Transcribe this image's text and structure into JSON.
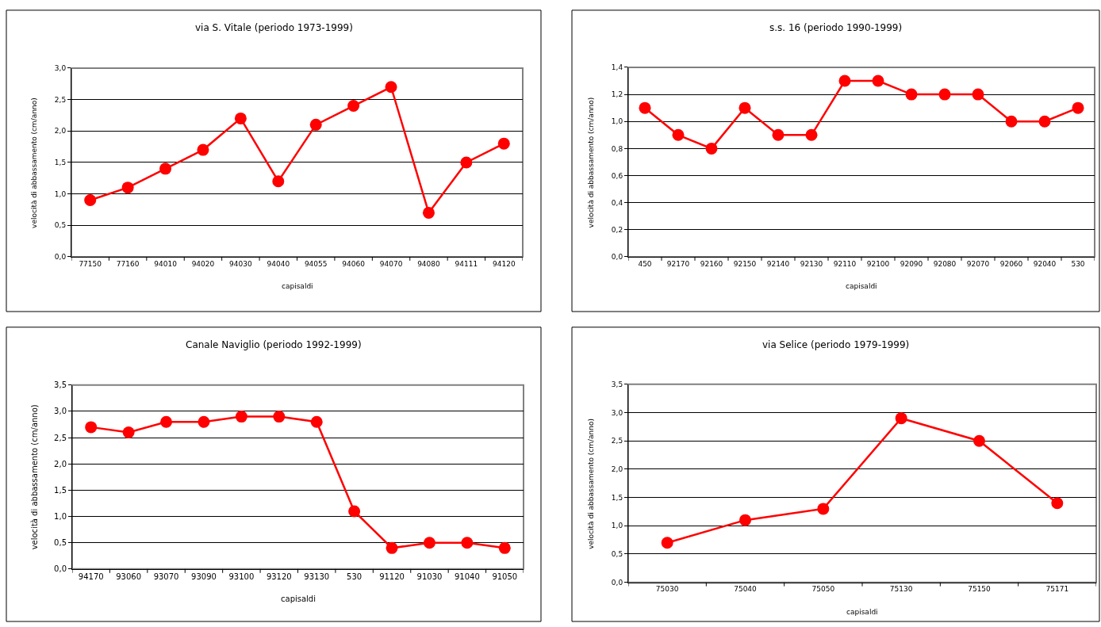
{
  "chart_data": [
    {
      "type": "line",
      "title": "via S. Vitale (periodo 1973-1999)",
      "xlabel": "capisaldi",
      "ylabel": "velocità di abbassamento (cm/anno)",
      "categories": [
        "77150",
        "77160",
        "94010",
        "94020",
        "94030",
        "94040",
        "94055",
        "94060",
        "94070",
        "94080",
        "94111",
        "94120"
      ],
      "series": [
        {
          "color": "#ff0000",
          "values": [
            0.9,
            1.1,
            1.4,
            1.7,
            2.2,
            1.2,
            2.1,
            2.4,
            2.7,
            0.7,
            1.5,
            1.8
          ]
        }
      ],
      "ylim": [
        0,
        3
      ],
      "yticks": [
        {
          "value": 0,
          "label": "0,0"
        },
        {
          "value": 0.5,
          "label": "0,5"
        },
        {
          "value": 1,
          "label": "1,0"
        },
        {
          "value": 1.5,
          "label": "1,5"
        },
        {
          "value": 2,
          "label": "2,0"
        },
        {
          "value": 2.5,
          "label": "2,5"
        },
        {
          "value": 3,
          "label": "3,0"
        }
      ],
      "grid": "y",
      "marker": "circle",
      "line_style": "solid"
    },
    {
      "type": "line",
      "title": "s.s. 16 (periodo 1990-1999)",
      "xlabel": "capisaldi",
      "ylabel": "velocità di abbassamento (cm/anno)",
      "categories": [
        "450",
        "92170",
        "92160",
        "92150",
        "92140",
        "92130",
        "92110",
        "92100",
        "92090",
        "92080",
        "92070",
        "92060",
        "92040",
        "530"
      ],
      "series": [
        {
          "color": "#ff0000",
          "values": [
            1.1,
            0.9,
            0.8,
            1.1,
            0.9,
            0.9,
            1.3,
            1.3,
            1.2,
            1.2,
            1.2,
            1.0,
            1.0,
            1.1
          ]
        }
      ],
      "ylim": [
        0,
        1.4
      ],
      "yticks": [
        {
          "value": 0,
          "label": "0,0"
        },
        {
          "value": 0.2,
          "label": "0,2"
        },
        {
          "value": 0.4,
          "label": "0,4"
        },
        {
          "value": 0.6,
          "label": "0,6"
        },
        {
          "value": 0.8,
          "label": "0,8"
        },
        {
          "value": 1,
          "label": "1,0"
        },
        {
          "value": 1.2,
          "label": "1,2"
        },
        {
          "value": 1.4,
          "label": "1,4"
        }
      ],
      "grid": "y",
      "marker": "circle",
      "line_style": "solid"
    },
    {
      "type": "line",
      "title": "Canale Naviglio (periodo 1992-1999)",
      "xlabel": "capisaldi",
      "ylabel": "velocità di abbassamento (cm/anno)",
      "categories": [
        "94170",
        "93060",
        "93070",
        "93090",
        "93100",
        "93120",
        "93130",
        "530",
        "91120",
        "91030",
        "91040",
        "91050"
      ],
      "series": [
        {
          "color": "#ff0000",
          "values": [
            2.7,
            2.6,
            2.8,
            2.8,
            2.9,
            2.9,
            2.8,
            1.1,
            0.4,
            0.5,
            0.5,
            0.4
          ]
        }
      ],
      "ylim": [
        0,
        3.5
      ],
      "yticks": [
        {
          "value": 0,
          "label": "0,0"
        },
        {
          "value": 0.5,
          "label": "0,5"
        },
        {
          "value": 1,
          "label": "1,0"
        },
        {
          "value": 1.5,
          "label": "1,5"
        },
        {
          "value": 2,
          "label": "2,0"
        },
        {
          "value": 2.5,
          "label": "2,5"
        },
        {
          "value": 3,
          "label": "3,0"
        },
        {
          "value": 3.5,
          "label": "3,5"
        }
      ],
      "grid": "y",
      "marker": "circle",
      "line_style": "solid"
    },
    {
      "type": "line",
      "title": "via Selice (periodo 1979-1999)",
      "xlabel": "capisaldi",
      "ylabel": "velocità di abbassamento (cm/anno)",
      "categories": [
        "75030",
        "75040",
        "75050",
        "75130",
        "75150",
        "75171"
      ],
      "series": [
        {
          "color": "#ff0000",
          "values": [
            0.7,
            1.1,
            1.3,
            2.9,
            2.5,
            1.4
          ]
        }
      ],
      "ylim": [
        0,
        3.5
      ],
      "yticks": [
        {
          "value": 0,
          "label": "0,0"
        },
        {
          "value": 0.5,
          "label": "0,5"
        },
        {
          "value": 1,
          "label": "1,0"
        },
        {
          "value": 1.5,
          "label": "1,5"
        },
        {
          "value": 2,
          "label": "2,0"
        },
        {
          "value": 2.5,
          "label": "2,5"
        },
        {
          "value": 3,
          "label": "3,0"
        },
        {
          "value": 3.5,
          "label": "3,5"
        }
      ],
      "grid": "y",
      "marker": "circle",
      "line_style": "solid"
    }
  ]
}
